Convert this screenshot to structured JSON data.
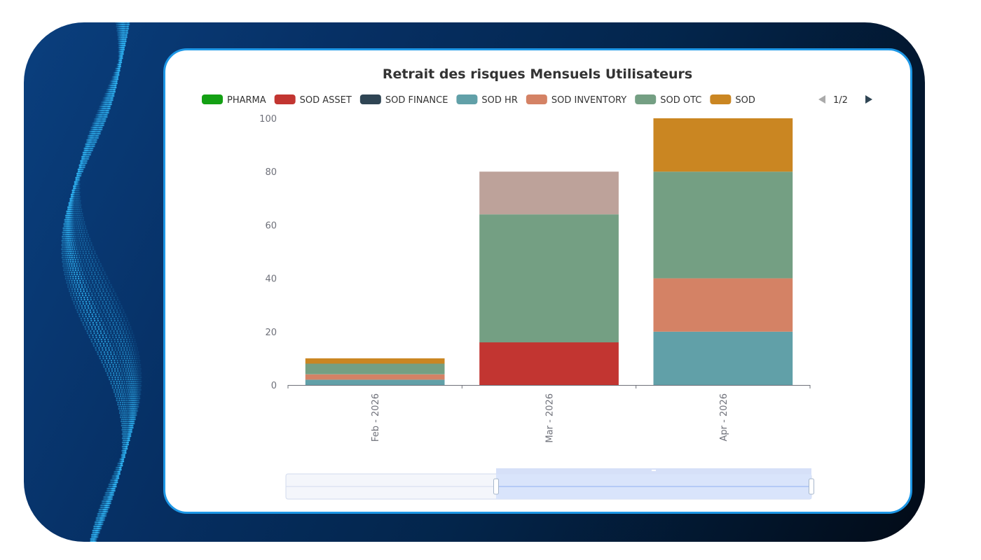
{
  "colors": {
    "frame_gradient": [
      "#0a3f7e",
      "#062f63",
      "#03254b",
      "#020b17"
    ],
    "card_border": "#1d97e6",
    "dots": "#2fb0ef"
  },
  "chart_data": {
    "type": "bar",
    "stacked": true,
    "title": "Retrait des risques Mensuels Utilisateurs",
    "categories": [
      "Feb - 2026",
      "Mar - 2026",
      "Apr - 2026"
    ],
    "ylim": [
      0,
      100
    ],
    "yticks": [
      0,
      20,
      40,
      60,
      80,
      100
    ],
    "grid": false,
    "legend_position": "top",
    "legend_page": "1/2",
    "legend": [
      {
        "name": "PHARMA",
        "color": "#14a014"
      },
      {
        "name": "SOD ASSET",
        "color": "#c23531"
      },
      {
        "name": "SOD FINANCE",
        "color": "#2f4554"
      },
      {
        "name": "SOD HR",
        "color": "#61a0a8"
      },
      {
        "name": "SOD INVENTORY",
        "color": "#d48265"
      },
      {
        "name": "SOD OTC",
        "color": "#749f83"
      },
      {
        "name": "SOD",
        "color": "#ca8622"
      }
    ],
    "series": [
      {
        "name": "PHARMA",
        "color": "#14a014",
        "values": [
          0,
          0,
          0
        ]
      },
      {
        "name": "SOD ASSET",
        "color": "#c23531",
        "values": [
          0,
          16,
          0
        ]
      },
      {
        "name": "SOD FINANCE",
        "color": "#2f4554",
        "values": [
          0,
          0,
          0
        ]
      },
      {
        "name": "SOD HR",
        "color": "#61a0a8",
        "values": [
          2,
          0,
          20
        ]
      },
      {
        "name": "SOD INVENTORY",
        "color": "#d48265",
        "values": [
          2,
          0,
          20
        ]
      },
      {
        "name": "SOD OTC",
        "color": "#749f83",
        "values": [
          4,
          48,
          40
        ]
      },
      {
        "name": "",
        "color": "#bda29a",
        "values": [
          0,
          16,
          0
        ]
      },
      {
        "name": "SOD",
        "color": "#ca8622",
        "values": [
          2,
          0,
          20
        ]
      }
    ],
    "zoom": {
      "start_fraction": 0.4,
      "end_fraction": 1.0
    }
  }
}
